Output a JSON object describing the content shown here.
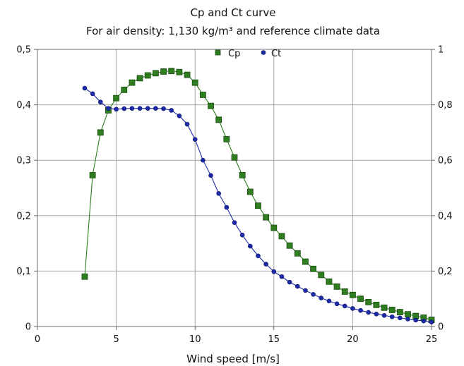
{
  "chart_data": {
    "type": "line",
    "title": "Cp and Ct curve",
    "subtitle": "For air density: 1,130 kg/m³ and reference climate data",
    "xlabel": "Wind speed [m/s]",
    "ylabel": "",
    "y2label": "",
    "xlim": [
      0,
      25
    ],
    "ylim": [
      0,
      0.5
    ],
    "y2lim": [
      0,
      1
    ],
    "x_ticks": [
      0,
      5,
      10,
      15,
      20,
      25
    ],
    "x_tick_labels": [
      "0",
      "5",
      "10",
      "15",
      "20",
      "25"
    ],
    "y_ticks": [
      0,
      0.1,
      0.2,
      0.3,
      0.4,
      0.5
    ],
    "y_tick_labels": [
      "0",
      "0,1",
      "0,2",
      "0,3",
      "0,4",
      "0,5"
    ],
    "y2_ticks": [
      0,
      0.2,
      0.4,
      0.6,
      0.8,
      1
    ],
    "y2_tick_labels": [
      "0",
      "0,2",
      "0,4",
      "0,6",
      "0,8",
      "1"
    ],
    "grid": true,
    "legend_position": "top-center",
    "series": [
      {
        "name": "Cp",
        "axis": "left",
        "color": "#2e7d1f",
        "marker": "square",
        "x": [
          3,
          3.5,
          4,
          4.5,
          5,
          5.5,
          6,
          6.5,
          7,
          7.5,
          8,
          8.5,
          9,
          9.5,
          10,
          10.5,
          11,
          11.5,
          12,
          12.5,
          13,
          13.5,
          14,
          14.5,
          15,
          15.5,
          16,
          16.5,
          17,
          17.5,
          18,
          18.5,
          19,
          19.5,
          20,
          20.5,
          21,
          21.5,
          22,
          22.5,
          23,
          23.5,
          24,
          24.5,
          25
        ],
        "values": [
          0.09,
          0.273,
          0.35,
          0.39,
          0.412,
          0.427,
          0.44,
          0.448,
          0.453,
          0.457,
          0.46,
          0.461,
          0.459,
          0.454,
          0.44,
          0.418,
          0.398,
          0.373,
          0.338,
          0.305,
          0.273,
          0.243,
          0.218,
          0.197,
          0.178,
          0.163,
          0.146,
          0.132,
          0.117,
          0.104,
          0.093,
          0.081,
          0.072,
          0.063,
          0.057,
          0.05,
          0.044,
          0.039,
          0.034,
          0.03,
          0.026,
          0.022,
          0.019,
          0.016,
          0.012
        ]
      },
      {
        "name": "Ct",
        "axis": "right",
        "color": "#1c2aa8",
        "marker": "circle",
        "x": [
          3,
          3.5,
          4,
          4.5,
          5,
          5.5,
          6,
          6.5,
          7,
          7.5,
          8,
          8.5,
          9,
          9.5,
          10,
          10.5,
          11,
          11.5,
          12,
          12.5,
          13,
          13.5,
          14,
          14.5,
          15,
          15.5,
          16,
          16.5,
          17,
          17.5,
          18,
          18.5,
          19,
          19.5,
          20,
          20.5,
          21,
          21.5,
          22,
          22.5,
          23,
          23.5,
          24,
          24.5,
          25
        ],
        "values": [
          0.86,
          0.84,
          0.81,
          0.787,
          0.784,
          0.786,
          0.787,
          0.787,
          0.787,
          0.787,
          0.786,
          0.78,
          0.76,
          0.73,
          0.675,
          0.6,
          0.545,
          0.48,
          0.43,
          0.375,
          0.33,
          0.29,
          0.255,
          0.225,
          0.198,
          0.18,
          0.16,
          0.145,
          0.13,
          0.116,
          0.103,
          0.092,
          0.082,
          0.074,
          0.065,
          0.058,
          0.051,
          0.045,
          0.04,
          0.035,
          0.031,
          0.027,
          0.023,
          0.02,
          0.016
        ]
      }
    ]
  }
}
